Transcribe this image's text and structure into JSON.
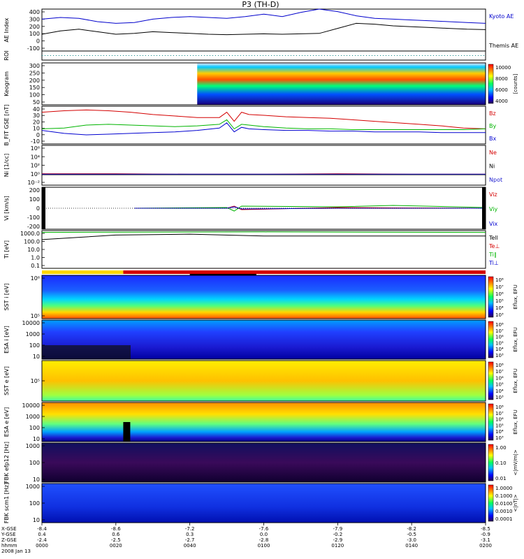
{
  "title": "P3 (TH-D)",
  "colors": {
    "kyoto": "#0000cc",
    "themis": "#000000",
    "bz": "#d40000",
    "by": "#00b400",
    "bx": "#0000d0",
    "npot": "#2020d0"
  },
  "chart_data": {
    "type": "line",
    "title": "P3 (TH-D)",
    "time_labels": [
      "0000",
      "0020",
      "0040",
      "0100",
      "0120",
      "0140",
      "0200"
    ],
    "date_label": "2008 Jan 13",
    "ephemeris": {
      "row_labels": [
        "X-GSE",
        "Y-GSE",
        "Z-GSE",
        "hhmm"
      ],
      "x_gse": [
        "-8.4",
        "-8.6",
        "-7.2",
        "-7.6",
        "-7.9",
        "-8.2",
        "-8.5"
      ],
      "y_gse": [
        "0.4",
        "0.6",
        "0.3",
        "0.0",
        "-0.2",
        "-0.5",
        "-0.9"
      ],
      "z_gse": [
        "-2.4",
        "-2.5",
        "-2.7",
        "-2.8",
        "-2.9",
        "-3.0",
        "-3.1"
      ]
    },
    "panels": [
      {
        "id": "ae",
        "ylabel": "AE Index",
        "ylim": [
          -100,
          400
        ],
        "ticks": [
          "400",
          "300",
          "200",
          "100",
          "0",
          "-100"
        ],
        "series": [
          {
            "name": "Kyoto AE",
            "color": "#0000cc",
            "x": [
              0,
              5,
              10,
              15,
              20,
              25,
              30,
              35,
              40,
              45,
              50,
              55,
              60,
              65,
              70,
              75,
              80,
              85,
              90,
              95,
              100,
              105,
              110,
              115,
              120
            ],
            "y": [
              280,
              300,
              290,
              250,
              230,
              240,
              280,
              300,
              310,
              300,
              290,
              310,
              340,
              310,
              360,
              400,
              370,
              320,
              290,
              280,
              270,
              260,
              250,
              240,
              230
            ]
          },
          {
            "name": "Themis AE",
            "color": "#000000",
            "x": [
              0,
              5,
              10,
              15,
              20,
              25,
              30,
              35,
              40,
              45,
              50,
              55,
              60,
              65,
              70,
              75,
              80,
              85,
              90,
              95,
              100,
              105,
              110,
              115,
              120
            ],
            "y": [
              100,
              140,
              160,
              130,
              100,
              110,
              130,
              120,
              110,
              100,
              95,
              100,
              105,
              100,
              105,
              110,
              170,
              230,
              220,
              200,
              190,
              180,
              170,
              160,
              155
            ]
          }
        ]
      },
      {
        "id": "roi",
        "ylabel": "ROI"
      },
      {
        "id": "keogram",
        "ylabel": "Keogram",
        "ylim": [
          0,
          300
        ],
        "ticks": [
          "300",
          "250",
          "200",
          "150",
          "100",
          "50"
        ],
        "colorbar": {
          "ticks": [
            "10000",
            "8000",
            "6000",
            "4000"
          ],
          "label": "[counts]"
        }
      },
      {
        "id": "bfgm",
        "ylabel": "B_FIT GSE [nT]",
        "ylim": [
          -10,
          40
        ],
        "ticks": [
          "40",
          "30",
          "20",
          "10",
          "0",
          "-10"
        ],
        "series": [
          {
            "name": "Bz",
            "color": "#d40000",
            "x": [
              0,
              6,
              12,
              18,
              24,
              30,
              36,
              42,
              48,
              50,
              52,
              54,
              56,
              60,
              66,
              72,
              78,
              84,
              90,
              96,
              102,
              108,
              114,
              120
            ],
            "y": [
              32,
              34,
              35,
              34,
              32,
              29,
              27,
              25,
              25,
              32,
              20,
              32,
              29,
              28,
              26,
              25,
              24,
              22,
              20,
              18,
              16,
              14,
              11,
              10
            ]
          },
          {
            "name": "By",
            "color": "#00b400",
            "x": [
              0,
              6,
              12,
              18,
              24,
              30,
              36,
              42,
              48,
              50,
              52,
              54,
              56,
              60,
              66,
              72,
              78,
              84,
              90,
              96,
              102,
              108,
              114,
              120
            ],
            "y": [
              10,
              11,
              15,
              16,
              15,
              14,
              13,
              14,
              16,
              22,
              10,
              16,
              15,
              13,
              11,
              10,
              10,
              9,
              9,
              9,
              9,
              9,
              9,
              10
            ]
          },
          {
            "name": "Bx",
            "color": "#0000d0",
            "x": [
              0,
              6,
              12,
              18,
              24,
              30,
              36,
              42,
              48,
              50,
              52,
              54,
              56,
              60,
              66,
              72,
              78,
              84,
              90,
              96,
              102,
              108,
              114,
              120
            ],
            "y": [
              8,
              4,
              2,
              3,
              4,
              5,
              6,
              8,
              11,
              18,
              6,
              12,
              10,
              9,
              8,
              8,
              7,
              7,
              6,
              6,
              6,
              5,
              5,
              5
            ]
          }
        ]
      },
      {
        "id": "density",
        "ylabel": "Ni [1/cc]",
        "ylim": [
          -2,
          6
        ],
        "ticks": [
          "10⁶",
          "10⁴",
          "10²",
          "10⁰",
          "10⁻²"
        ],
        "series": [
          {
            "name": "Ne",
            "color": "#d40000",
            "x": [
              0,
              20,
              40,
              60,
              80,
              100,
              120
            ],
            "y": [
              0.3,
              0.3,
              0.2,
              0.2,
              0.3,
              0.2,
              0.2
            ]
          },
          {
            "name": "Ni",
            "color": "#000000",
            "x": [
              0,
              20,
              40,
              60,
              80,
              100,
              120
            ],
            "y": [
              0.1,
              0.1,
              0.1,
              0.1,
              0.1,
              0.1,
              0.1
            ]
          },
          {
            "name": "Npot",
            "color": "#2020d0",
            "x": [
              0,
              20,
              40,
              60,
              80,
              100,
              120
            ],
            "y": [
              0.2,
              0.2,
              0.2,
              0.2,
              0.2,
              0.2,
              0.2
            ]
          }
        ]
      },
      {
        "id": "velocity",
        "ylabel": "Vi [km/s]",
        "ylim": [
          -300,
          300
        ],
        "ticks": [
          "200",
          "100",
          "0",
          "-100",
          "-200"
        ],
        "series": [
          {
            "name": "Viz",
            "color": "#d40000",
            "x": [
              25,
              50,
              52,
              54,
              80,
              95,
              120
            ],
            "y": [
              0,
              0,
              30,
              -20,
              10,
              5,
              0
            ]
          },
          {
            "name": "Viy",
            "color": "#00b400",
            "x": [
              25,
              50,
              52,
              54,
              80,
              95,
              120
            ],
            "y": [
              0,
              10,
              -40,
              30,
              20,
              40,
              10
            ]
          },
          {
            "name": "Vix",
            "color": "#0000d0",
            "x": [
              25,
              50,
              52,
              54,
              80,
              95,
              120
            ],
            "y": [
              0,
              0,
              20,
              -10,
              0,
              0,
              0
            ]
          }
        ]
      },
      {
        "id": "temperature",
        "ylabel": "Ti [eV]",
        "ticks": [
          "1000.0",
          "100.0",
          "10.0",
          "1.0",
          "0.1"
        ],
        "series": [
          {
            "name": "Tell",
            "color": "#000000"
          },
          {
            "name": "Te⊥",
            "color": "#d40000"
          },
          {
            "name": "Ti∥",
            "color": "#00b400"
          },
          {
            "name": "Ti⊥",
            "color": "#0000d0"
          }
        ]
      },
      {
        "id": "sst_ion",
        "ylabel": "SST i [eV]",
        "ticks": [
          "10⁶",
          "10⁵"
        ],
        "colorbar": {
          "ticks": [
            "10⁸",
            "10⁷",
            "10⁶",
            "10⁵",
            "10⁴",
            "10³"
          ],
          "label": "Eflux, EFU"
        }
      },
      {
        "id": "esa_ion",
        "ylabel": "ESA i [eV]",
        "ticks": [
          "10000",
          "1000",
          "100",
          "10"
        ],
        "colorbar": {
          "ticks": [
            "10⁸",
            "10⁷",
            "10⁶",
            "10⁵",
            "10⁴",
            "10³"
          ],
          "label": "Eflux, EFU"
        }
      },
      {
        "id": "sst_elec",
        "ylabel": "SST e [eV]",
        "ticks": [
          "10⁵"
        ],
        "colorbar": {
          "ticks": [
            "10⁸",
            "10⁷",
            "10⁶",
            "10⁵",
            "10⁴",
            "10³"
          ],
          "label": "Eflux, EFU"
        }
      },
      {
        "id": "esa_elec",
        "ylabel": "ESA e [eV]",
        "ticks": [
          "10000",
          "1000",
          "100",
          "10"
        ],
        "colorbar": {
          "ticks": [
            "10⁸",
            "10⁷",
            "10⁶",
            "10⁵",
            "10⁴",
            "10³"
          ],
          "label": "Eflux, EFU"
        }
      },
      {
        "id": "fbk_e",
        "ylabel": "FBK efp12 [Hz]",
        "ticks": [
          "1000",
          "100",
          "10"
        ],
        "colorbar": {
          "ticks": [
            "1.00",
            "0.10",
            "0.01"
          ],
          "label": "<|mV/m|>"
        }
      },
      {
        "id": "fbk_b",
        "ylabel": "FBK scm1 [Hz]",
        "ticks": [
          "1000",
          "100",
          "10"
        ],
        "colorbar": {
          "ticks": [
            "1.0000",
            "0.1000",
            "0.0100",
            "0.0010",
            "0.0001"
          ],
          "label": "<|nT|>"
        }
      }
    ]
  }
}
